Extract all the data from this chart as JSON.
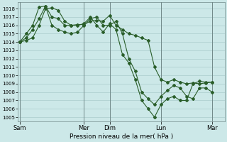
{
  "title": "Pression niveau de la mer( hPa )",
  "bg_color": "#cce8e8",
  "plot_bg_color": "#cce8e8",
  "grid_color": "#aacccc",
  "line_color": "#2a5e2a",
  "marker_color": "#2a5e2a",
  "ylim": [
    1004.5,
    1018.8
  ],
  "yticks": [
    1005,
    1006,
    1007,
    1008,
    1009,
    1010,
    1011,
    1012,
    1013,
    1014,
    1015,
    1016,
    1017,
    1018
  ],
  "xtick_labels": [
    "Sam",
    "Mer",
    "Dim",
    "Lun",
    "Mar"
  ],
  "xtick_positions": [
    0,
    60,
    84,
    132,
    180
  ],
  "xlim": [
    -2,
    192
  ],
  "vline_positions": [
    0,
    60,
    84,
    132,
    180
  ],
  "series1_x": [
    0,
    6,
    12,
    18,
    24,
    30,
    36,
    42,
    48,
    54,
    60,
    66,
    72,
    78,
    84,
    90,
    96,
    102,
    108,
    114,
    120,
    126,
    132,
    138,
    144,
    150,
    156,
    162,
    168,
    174,
    180
  ],
  "series1_y": [
    1014.0,
    1014.2,
    1014.5,
    1016.0,
    1018.0,
    1018.1,
    1017.8,
    1016.5,
    1016.0,
    1016.1,
    1016.1,
    1016.5,
    1016.6,
    1016.5,
    1017.2,
    1016.0,
    1015.5,
    1015.0,
    1014.8,
    1014.5,
    1014.2,
    1011.0,
    1009.5,
    1009.2,
    1009.5,
    1009.2,
    1009.0,
    1009.1,
    1009.0,
    1009.1,
    1009.2
  ],
  "series2_x": [
    0,
    6,
    12,
    18,
    24,
    30,
    36,
    42,
    48,
    54,
    60,
    66,
    72,
    78,
    84,
    90,
    96,
    102,
    108,
    114,
    120,
    126,
    132,
    138,
    144,
    150,
    156,
    162,
    168,
    174,
    180
  ],
  "series2_y": [
    1014.0,
    1015.0,
    1016.0,
    1018.2,
    1018.3,
    1017.0,
    1016.8,
    1016.0,
    1016.0,
    1016.0,
    1016.2,
    1017.0,
    1016.0,
    1015.2,
    1016.2,
    1015.5,
    1012.5,
    1011.5,
    1009.5,
    1007.0,
    1006.0,
    1005.0,
    1006.5,
    1007.2,
    1007.5,
    1007.0,
    1007.0,
    1009.0,
    1009.3,
    1009.2,
    1009.2
  ],
  "series3_x": [
    0,
    6,
    12,
    18,
    24,
    30,
    36,
    42,
    48,
    54,
    60,
    66,
    72,
    78,
    84,
    90,
    96,
    102,
    108,
    114,
    120,
    126,
    132,
    138,
    144,
    150,
    156,
    162,
    168,
    174,
    180
  ],
  "series3_y": [
    1014.0,
    1014.5,
    1015.5,
    1016.8,
    1018.3,
    1016.0,
    1015.5,
    1015.2,
    1015.0,
    1015.2,
    1016.0,
    1016.8,
    1017.0,
    1016.0,
    1016.0,
    1016.5,
    1015.0,
    1012.0,
    1010.5,
    1008.0,
    1007.2,
    1006.5,
    1007.5,
    1008.2,
    1008.8,
    1008.5,
    1007.5,
    1007.2,
    1008.5,
    1008.5,
    1008.0
  ]
}
